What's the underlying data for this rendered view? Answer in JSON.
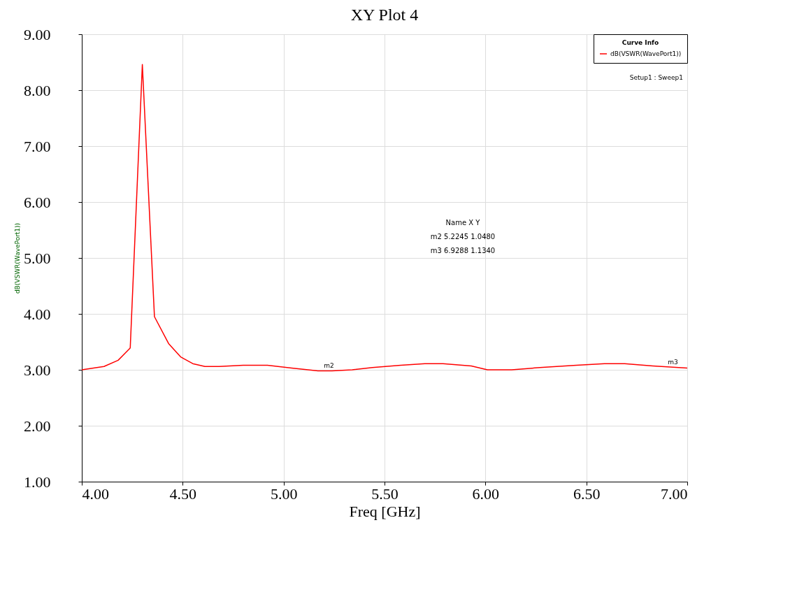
{
  "chart_data": {
    "type": "line",
    "title": "XY Plot 4",
    "xlabel": "Freq [GHz]",
    "ylabel": "dB(VSWR(WavePort1))",
    "legend_title": "Curve Info",
    "legend": "top right",
    "grid": true,
    "marker": "none",
    "line_style": "solid",
    "xlim": [
      4.0,
      7.0
    ],
    "xticks": [
      {
        "value": 4.0,
        "label": "4.00"
      },
      {
        "value": 4.5,
        "label": "4.50"
      },
      {
        "value": 5.0,
        "label": "5.00"
      },
      {
        "value": 5.5,
        "label": "5.50"
      },
      {
        "value": 6.0,
        "label": "6.00"
      },
      {
        "value": 6.5,
        "label": "6.50"
      },
      {
        "value": 7.0,
        "label": "7.00"
      }
    ],
    "ylim": [
      1.0,
      9.0
    ],
    "yticks": [
      {
        "value": 1,
        "label": "1.00"
      },
      {
        "value": 2,
        "label": "2.00"
      },
      {
        "value": 3,
        "label": "3.00"
      },
      {
        "value": 4,
        "label": "4.00"
      },
      {
        "value": 5,
        "label": "5.00"
      },
      {
        "value": 6,
        "label": "6.00"
      },
      {
        "value": 7,
        "label": "7.00"
      },
      {
        "value": 8,
        "label": "8.00"
      },
      {
        "value": 9,
        "label": "9.00"
      }
    ],
    "x": [
      4.0,
      4.11,
      4.18,
      4.24,
      4.3,
      4.36,
      4.43,
      4.49,
      4.55,
      4.61,
      4.68,
      4.8,
      4.92,
      5.04,
      5.17,
      5.24,
      5.34,
      5.44,
      5.58,
      5.7,
      5.79,
      5.93,
      6.01,
      6.13,
      6.27,
      6.45,
      6.59,
      6.69,
      6.83,
      7.0
    ],
    "series": [
      {
        "name": "dB(VSWR(WavePort1))",
        "color": "#ff0000",
        "values": [
          3.0,
          3.06,
          3.17,
          3.39,
          8.46,
          3.95,
          3.47,
          3.23,
          3.11,
          3.06,
          3.06,
          3.08,
          3.08,
          3.03,
          2.98,
          2.98,
          3.0,
          3.04,
          3.08,
          3.11,
          3.11,
          3.07,
          3.0,
          3.0,
          3.04,
          3.08,
          3.11,
          3.11,
          3.07,
          3.03
        ]
      }
    ],
    "annotations": [
      {
        "text": "m2",
        "x": 5.2245,
        "y": 2.98
      },
      {
        "text": "m3",
        "x": 6.9288,
        "y": 3.04
      },
      "Setup1 : Sweep1",
      "Name    X    Y",
      "m2    5.2245    1.0480",
      "m3    6.9288    1.1340"
    ]
  }
}
